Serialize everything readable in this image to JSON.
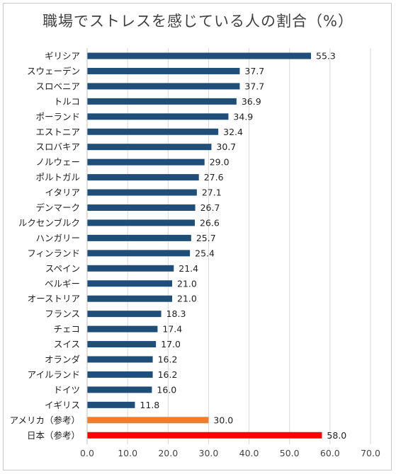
{
  "chart_data": {
    "type": "bar",
    "orientation": "horizontal",
    "title": "職場でストレスを感じている人の割合（%）",
    "categories": [
      "ギリシア",
      "スウェーデン",
      "スロベニア",
      "トルコ",
      "ポーランド",
      "エストニア",
      "スロバキア",
      "ノルウェー",
      "ポルトガル",
      "イタリア",
      "デンマーク",
      "ルクセンブルク",
      "ハンガリー",
      "フィンランド",
      "スペイン",
      "ベルギー",
      "オーストリア",
      "フランス",
      "チェコ",
      "スイス",
      "オランダ",
      "アイルランド",
      "ドイツ",
      "イギリス",
      "アメリカ（参考）",
      "日本（参考）"
    ],
    "values": [
      55.3,
      37.7,
      37.7,
      36.9,
      34.9,
      32.4,
      30.7,
      29.0,
      27.6,
      27.1,
      26.7,
      26.6,
      25.7,
      25.4,
      21.4,
      21.0,
      21.0,
      18.3,
      17.4,
      17.0,
      16.2,
      16.2,
      16.0,
      11.8,
      30.0,
      58.0
    ],
    "value_labels": [
      "55.3",
      "37.7",
      "37.7",
      "36.9",
      "34.9",
      "32.4",
      "30.7",
      "29.0",
      "27.6",
      "27.1",
      "26.7",
      "26.6",
      "25.7",
      "25.4",
      "21.4",
      "21.0",
      "21.0",
      "18.3",
      "17.4",
      "17.0",
      "16.2",
      "16.2",
      "16.0",
      "11.8",
      "30.0",
      "58.0"
    ],
    "bar_colors": [
      "#1f4e79",
      "#1f4e79",
      "#1f4e79",
      "#1f4e79",
      "#1f4e79",
      "#1f4e79",
      "#1f4e79",
      "#1f4e79",
      "#1f4e79",
      "#1f4e79",
      "#1f4e79",
      "#1f4e79",
      "#1f4e79",
      "#1f4e79",
      "#1f4e79",
      "#1f4e79",
      "#1f4e79",
      "#1f4e79",
      "#1f4e79",
      "#1f4e79",
      "#1f4e79",
      "#1f4e79",
      "#1f4e79",
      "#1f4e79",
      "#ed7d31",
      "#ff0000"
    ],
    "xlim": [
      0,
      70
    ],
    "x_ticks": [
      "0.0",
      "10.0",
      "20.0",
      "30.0",
      "40.0",
      "50.0",
      "60.0",
      "70.0"
    ],
    "grid": true,
    "legend": "none"
  }
}
